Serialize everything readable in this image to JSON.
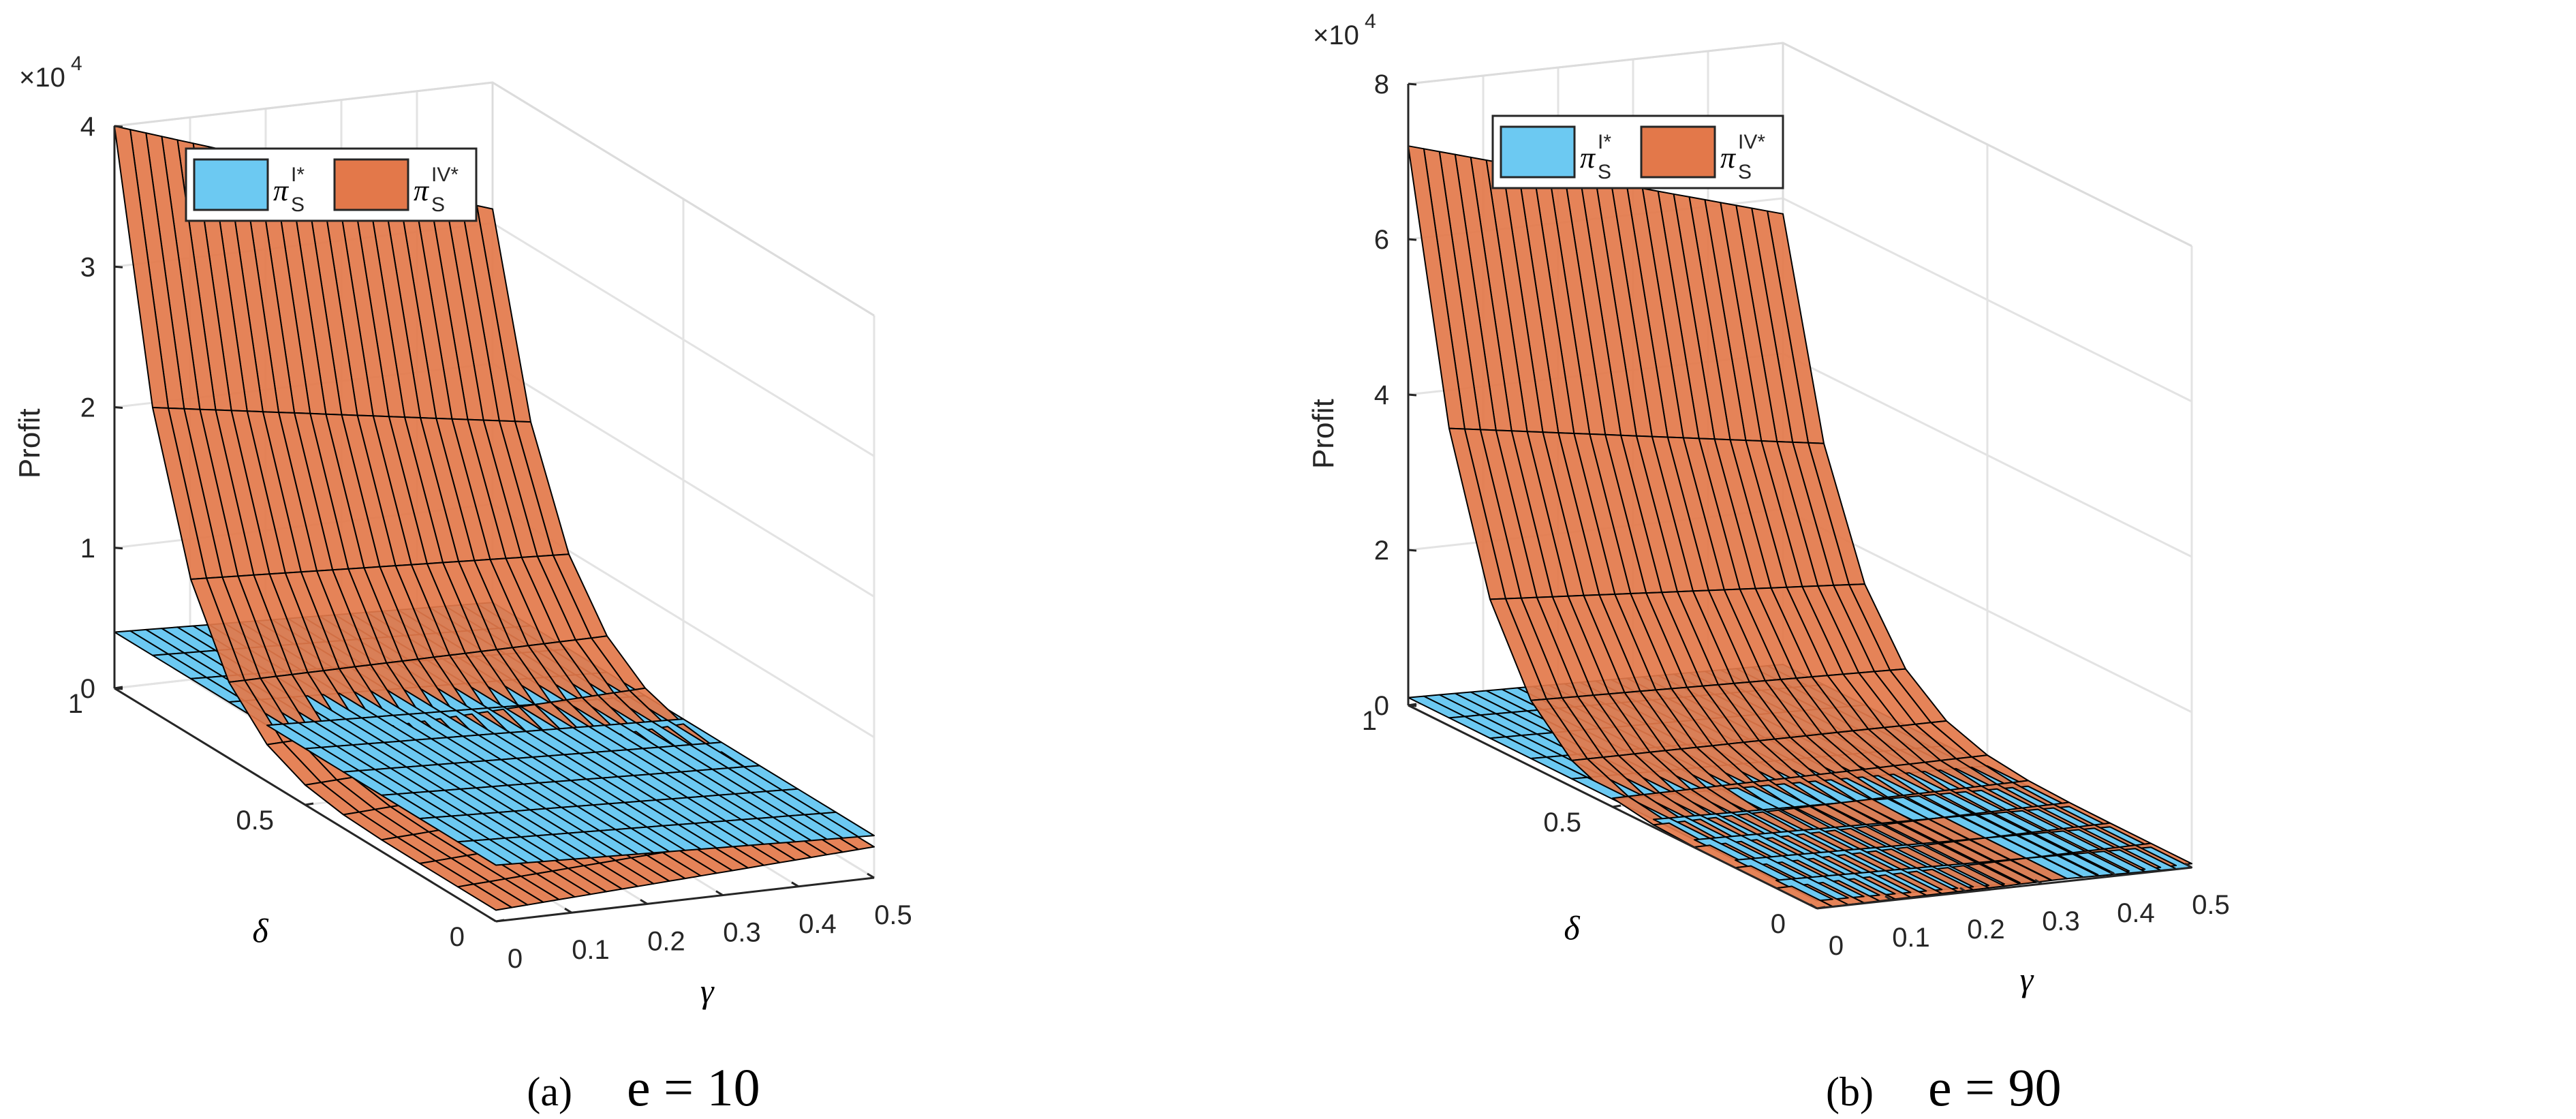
{
  "chart_data": [
    {
      "type": "surface3d",
      "panel_label": "(a)",
      "caption": "e = 10",
      "zlabel": "Profit",
      "xlabel": "γ",
      "ylabel": "δ",
      "exponent_label": "×10",
      "exponent_power": "4",
      "x_ticks": [
        "0",
        "0.1",
        "0.2",
        "0.3",
        "0.4",
        "0.5"
      ],
      "y_ticks": [
        "0",
        "0.5",
        "1"
      ],
      "z_ticks": [
        "0",
        "1",
        "2",
        "3",
        "4"
      ],
      "xlim": [
        0,
        0.5
      ],
      "ylim": [
        0,
        1
      ],
      "zlim": [
        0,
        40000
      ],
      "legend": [
        {
          "label": "π",
          "sub": "S",
          "sup": "I*",
          "color": "#6CC9F2"
        },
        {
          "label": "π",
          "sub": "S",
          "sup": "IV*",
          "color": "#E3784A"
        }
      ],
      "series": [
        {
          "name": "pi_S^I*",
          "color": "#6CC9F2",
          "description": "nearly flat plane",
          "z_at_gamma0": 4000,
          "z_at_gamma05": 3000,
          "z_delta_slope": 0
        },
        {
          "name": "pi_S^IV*",
          "color": "#E3784A",
          "description": "rises steeply with delta near gamma 0",
          "base_at_gamma0": 800,
          "base_at_gamma05": 2200,
          "peak_at_delta1_gamma0": 40000,
          "peak_at_delta1_gamma05": 31000,
          "curve_exponent": 6
        }
      ]
    },
    {
      "type": "surface3d",
      "panel_label": "(b)",
      "caption": "e = 90",
      "zlabel": "Profit",
      "xlabel": "γ",
      "ylabel": "δ",
      "exponent_label": "×10",
      "exponent_power": "4",
      "x_ticks": [
        "0",
        "0.1",
        "0.2",
        "0.3",
        "0.4",
        "0.5"
      ],
      "y_ticks": [
        "0",
        "0.5",
        "1"
      ],
      "z_ticks": [
        "0",
        "2",
        "4",
        "6",
        "8"
      ],
      "xlim": [
        0,
        0.5
      ],
      "ylim": [
        0,
        1
      ],
      "zlim": [
        0,
        80000
      ],
      "legend": [
        {
          "label": "π",
          "sub": "S",
          "sup": "I*",
          "color": "#6CC9F2"
        },
        {
          "label": "π",
          "sub": "S",
          "sup": "IV*",
          "color": "#E3784A"
        }
      ],
      "series": [
        {
          "name": "pi_S^I*",
          "color": "#6CC9F2",
          "description": "nearly flat plane",
          "z_at_gamma0": 1000,
          "z_at_gamma05": 0,
          "z_delta_slope": 0
        },
        {
          "name": "pi_S^IV*",
          "color": "#E3784A",
          "description": "rises steeply with delta near gamma 0",
          "base_at_gamma0": 0,
          "base_at_gamma05": 500,
          "peak_at_delta1_gamma0": 72000,
          "peak_at_delta1_gamma05": 58000,
          "curve_exponent": 6
        }
      ]
    }
  ]
}
